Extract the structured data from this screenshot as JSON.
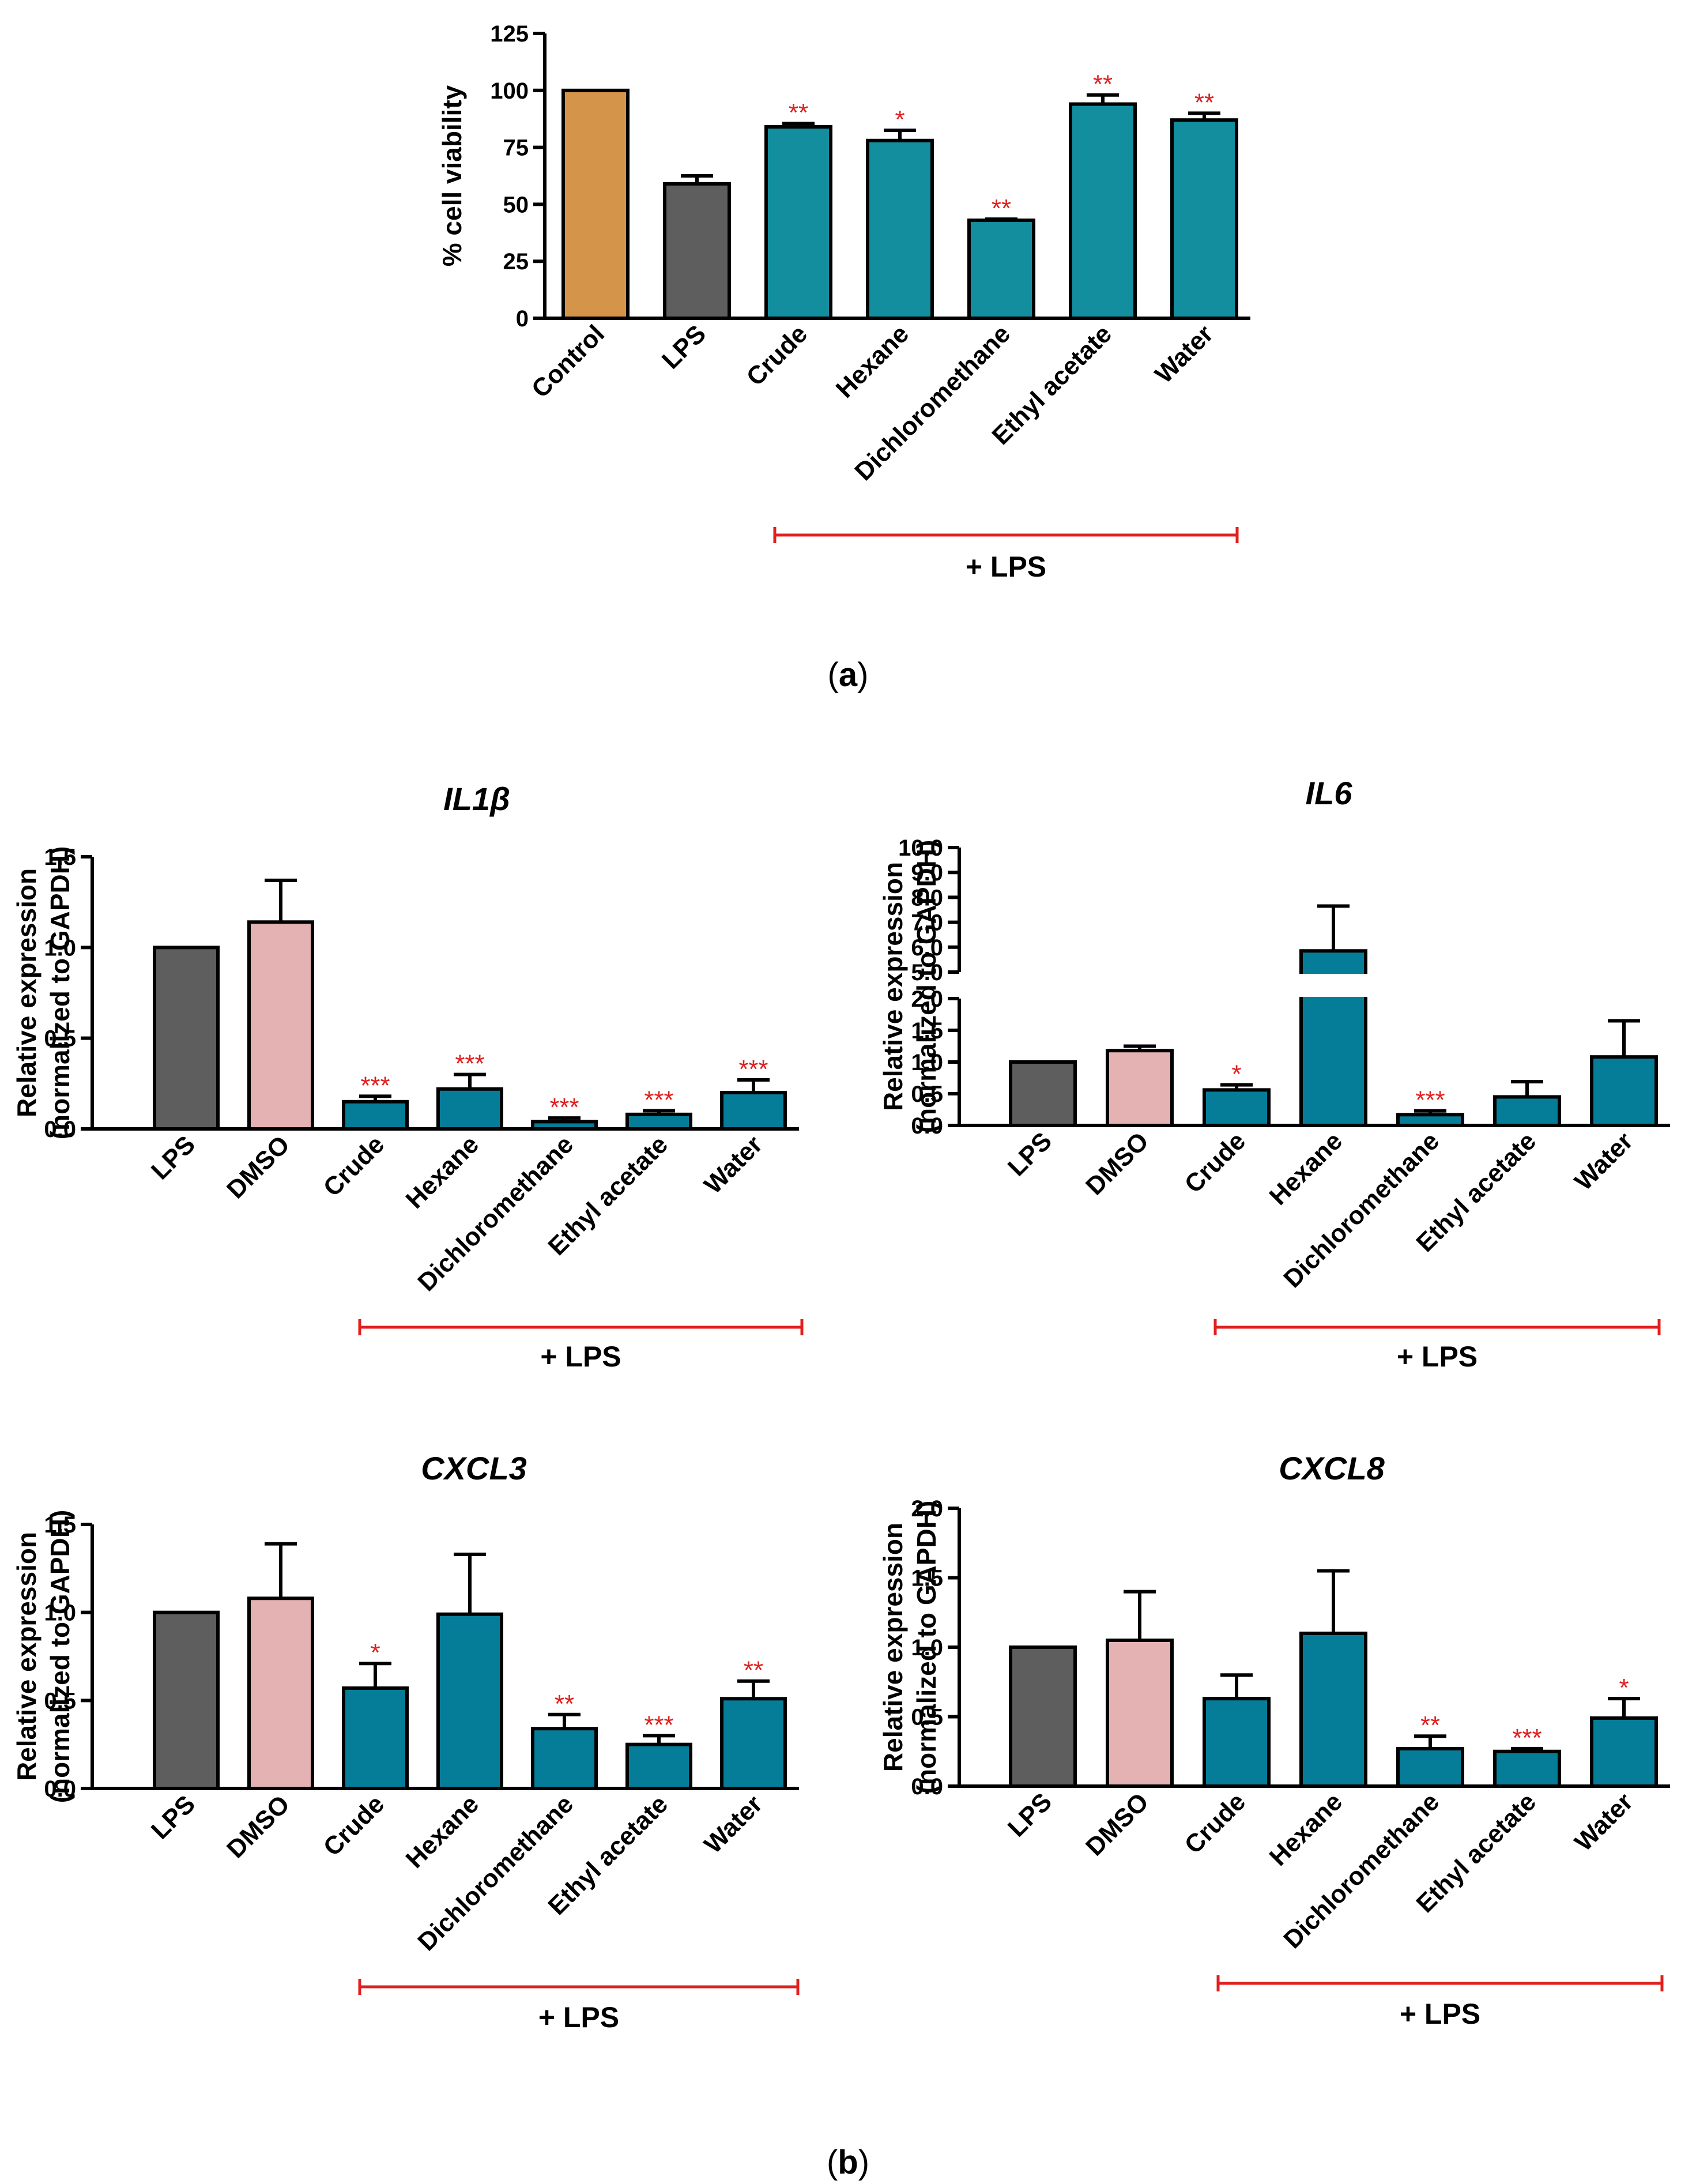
{
  "panel_labels": {
    "a": {
      "open": "(",
      "letter": "a",
      "close": ")"
    },
    "b": {
      "open": "(",
      "letter": "b",
      "close": ")"
    }
  },
  "colors": {
    "control": "#D4954A",
    "lps": "#5E5E5E",
    "dmso": "#E5B2B4",
    "treatment": "#138E9E",
    "treatment_b": "#067D98",
    "significance": "#E0201F"
  },
  "bracket_label": "+ LPS",
  "chart_data": [
    {
      "id": "a",
      "type": "bar",
      "title": "",
      "ylabel": "% cell viability",
      "ylim": [
        0,
        125
      ],
      "yticks": [
        "0",
        "25",
        "50",
        "75",
        "100",
        "125"
      ],
      "categories": [
        "Control",
        "LPS",
        "Crude",
        "Hexane",
        "Dichloromethane",
        "Ethyl acetate",
        "Water"
      ],
      "values": [
        100,
        59,
        84,
        78,
        43,
        94,
        87
      ],
      "errors": [
        0,
        3.5,
        1.5,
        4.5,
        0.5,
        4,
        3
      ],
      "significance": [
        "",
        "",
        "**",
        "*",
        "**",
        "**",
        "**"
      ],
      "colors": [
        "control",
        "lps",
        "treatment",
        "treatment",
        "treatment",
        "treatment",
        "treatment"
      ],
      "bracket_from": "Crude",
      "bracket_to": "Water"
    },
    {
      "id": "il1b",
      "type": "bar",
      "title": "IL1β",
      "ylabel": [
        "Relative expression",
        "(normalized to GAPDH)"
      ],
      "ylim": [
        0,
        1.5
      ],
      "yticks": [
        "0.0",
        "0.5",
        "1.0",
        "1.5"
      ],
      "categories": [
        "LPS",
        "DMSO",
        "Crude",
        "Hexane",
        "Dichloromethane",
        "Ethyl acetate",
        "Water"
      ],
      "values": [
        1.0,
        1.14,
        0.15,
        0.22,
        0.04,
        0.08,
        0.2
      ],
      "errors": [
        0,
        0.23,
        0.03,
        0.08,
        0.02,
        0.02,
        0.07
      ],
      "significance": [
        "",
        "",
        "***",
        "***",
        "***",
        "***",
        "***"
      ],
      "colors": [
        "lps",
        "dmso",
        "treatment_b",
        "treatment_b",
        "treatment_b",
        "treatment_b",
        "treatment_b"
      ],
      "bracket_from": "Crude",
      "bracket_to": "Water"
    },
    {
      "id": "il6",
      "type": "bar",
      "title": "IL6",
      "ylabel": [
        "Relative expression",
        "(normalized to GAPDH)"
      ],
      "ylim": [
        0,
        10
      ],
      "axis_break": [
        2,
        5
      ],
      "yticks_lower": [
        "0.0",
        "0.5",
        "1.0",
        "1.5",
        "2.0"
      ],
      "yticks_upper": [
        "5.0",
        "6.0",
        "7.0",
        "8.0",
        "9.0",
        "10.0"
      ],
      "categories": [
        "LPS",
        "DMSO",
        "Crude",
        "Hexane",
        "Dichloromethane",
        "Ethyl acetate",
        "Water"
      ],
      "values": [
        1.0,
        1.18,
        0.56,
        5.85,
        0.17,
        0.45,
        1.08
      ],
      "errors": [
        0,
        0.07,
        0.08,
        1.8,
        0.06,
        0.24,
        0.57
      ],
      "significance": [
        "",
        "",
        "*",
        "",
        "***",
        "",
        ""
      ],
      "colors": [
        "lps",
        "dmso",
        "treatment_b",
        "treatment_b",
        "treatment_b",
        "treatment_b",
        "treatment_b"
      ],
      "bracket_from": "Crude",
      "bracket_to": "Water"
    },
    {
      "id": "cxcl3",
      "type": "bar",
      "title": "CXCL3",
      "ylabel": [
        "Relative expression",
        "(normalized to GAPDH)"
      ],
      "ylim": [
        0,
        1.5
      ],
      "yticks": [
        "0.0",
        "0.5",
        "1.0",
        "1.5"
      ],
      "categories": [
        "LPS",
        "DMSO",
        "Crude",
        "Hexane",
        "Dichloromethane",
        "Ethyl acetate",
        "Water"
      ],
      "values": [
        1.0,
        1.08,
        0.57,
        0.99,
        0.34,
        0.25,
        0.51
      ],
      "errors": [
        0,
        0.31,
        0.14,
        0.34,
        0.08,
        0.05,
        0.1
      ],
      "significance": [
        "",
        "",
        "*",
        "",
        "**",
        "***",
        "**"
      ],
      "colors": [
        "lps",
        "dmso",
        "treatment_b",
        "treatment_b",
        "treatment_b",
        "treatment_b",
        "treatment_b"
      ],
      "bracket_from": "Crude",
      "bracket_to": "Water"
    },
    {
      "id": "cxcl8",
      "type": "bar",
      "title": "CXCL8",
      "ylabel": [
        "Relative expression",
        "(normalized to GAPDH)"
      ],
      "ylim": [
        0,
        2.0
      ],
      "yticks": [
        "0.0",
        "0.5",
        "1.0",
        "1.5",
        "2.0"
      ],
      "categories": [
        "LPS",
        "DMSO",
        "Crude",
        "Hexane",
        "Dichloromethane",
        "Ethyl acetate",
        "Water"
      ],
      "values": [
        1.0,
        1.05,
        0.63,
        1.1,
        0.27,
        0.25,
        0.49
      ],
      "errors": [
        0,
        0.35,
        0.17,
        0.45,
        0.09,
        0.02,
        0.14
      ],
      "significance": [
        "",
        "",
        "",
        "",
        "**",
        "***",
        "*"
      ],
      "colors": [
        "lps",
        "dmso",
        "treatment_b",
        "treatment_b",
        "treatment_b",
        "treatment_b",
        "treatment_b"
      ],
      "bracket_from": "Crude",
      "bracket_to": "Water"
    }
  ]
}
